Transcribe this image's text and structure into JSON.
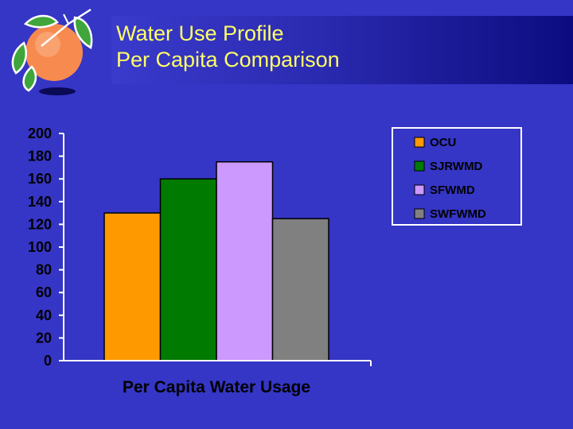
{
  "slide": {
    "title_line1": "Water Use Profile",
    "title_line2": "Per Capita Comparison"
  },
  "logo": {
    "icon": "orange-fruit-icon"
  },
  "colors": {
    "background": "#3535c6",
    "title_text": "#ffff66",
    "axis": "#ffffff",
    "tick_text": "#000000"
  },
  "chart_data": {
    "type": "bar",
    "xlabel": "Per Capita Water Usage",
    "ylabel": "",
    "ylim": [
      0,
      200
    ],
    "yticks": [
      0,
      20,
      40,
      60,
      80,
      100,
      120,
      140,
      160,
      180,
      200
    ],
    "grid": false,
    "legend_position": "top-right",
    "series": [
      {
        "name": "OCU",
        "values": [
          130
        ],
        "color": "#ff9900"
      },
      {
        "name": "SJRWMD",
        "values": [
          160
        ],
        "color": "#007a00"
      },
      {
        "name": "SFWMD",
        "values": [
          175
        ],
        "color": "#cc99ff"
      },
      {
        "name": "SWFWMD",
        "values": [
          125
        ],
        "color": "#808080"
      }
    ]
  }
}
